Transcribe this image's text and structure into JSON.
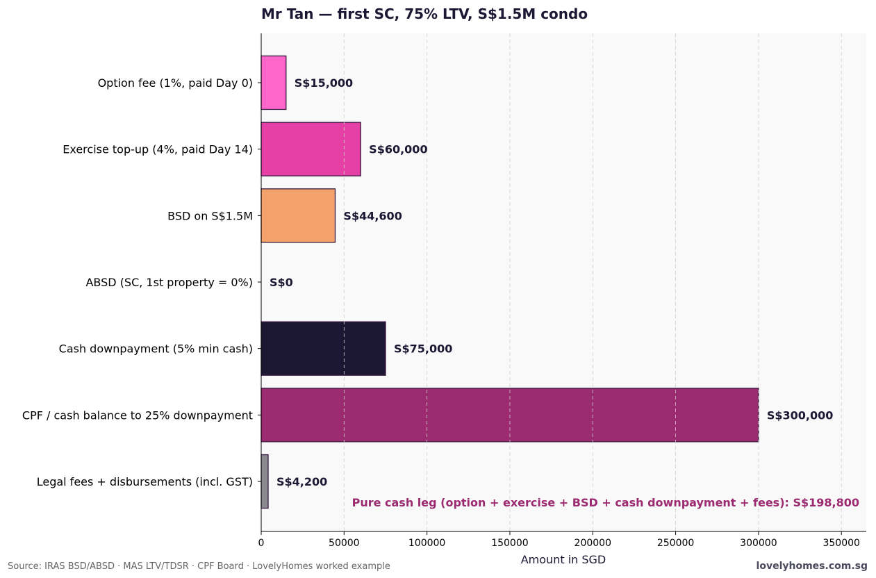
{
  "chart_data": {
    "type": "bar",
    "orientation": "horizontal",
    "title": "Mr Tan — first SC, 75% LTV, S$1.5M condo",
    "xlabel": "Amount in SGD",
    "ylabel": "",
    "xlim": [
      0,
      365000
    ],
    "xticks": [
      0,
      50000,
      100000,
      150000,
      200000,
      250000,
      300000,
      350000
    ],
    "grid": "x-dashed",
    "categories": [
      "Option fee (1%, paid Day 0)",
      "Exercise top-up (4%, paid Day 14)",
      "BSD on S$1.5M",
      "ABSD (SC, 1st property = 0%)",
      "Cash downpayment (5% min cash)",
      "CPF / cash balance to 25% downpayment",
      "Legal fees + disbursements (incl. GST)"
    ],
    "values": [
      15000,
      60000,
      44600,
      0,
      75000,
      300000,
      4200
    ],
    "value_labels": [
      "S$15,000",
      "S$60,000",
      "S$44,600",
      "S$0",
      "S$75,000",
      "S$300,000",
      "S$4,200"
    ],
    "colors": [
      "#ff66cc",
      "#e63fa5",
      "#f4a26b",
      "#e0e0e0",
      "#1c1733",
      "#9b2a70",
      "#8a8a8f"
    ],
    "annotation": "Pure cash leg (option + exercise + BSD + cash downpayment + fees):  S$198,800"
  },
  "footer": {
    "source": "Source: IRAS BSD/ABSD · MAS LTV/TDSR · CPF Board · LovelyHomes worked example",
    "brand": "lovelyhomes.com.sg"
  }
}
